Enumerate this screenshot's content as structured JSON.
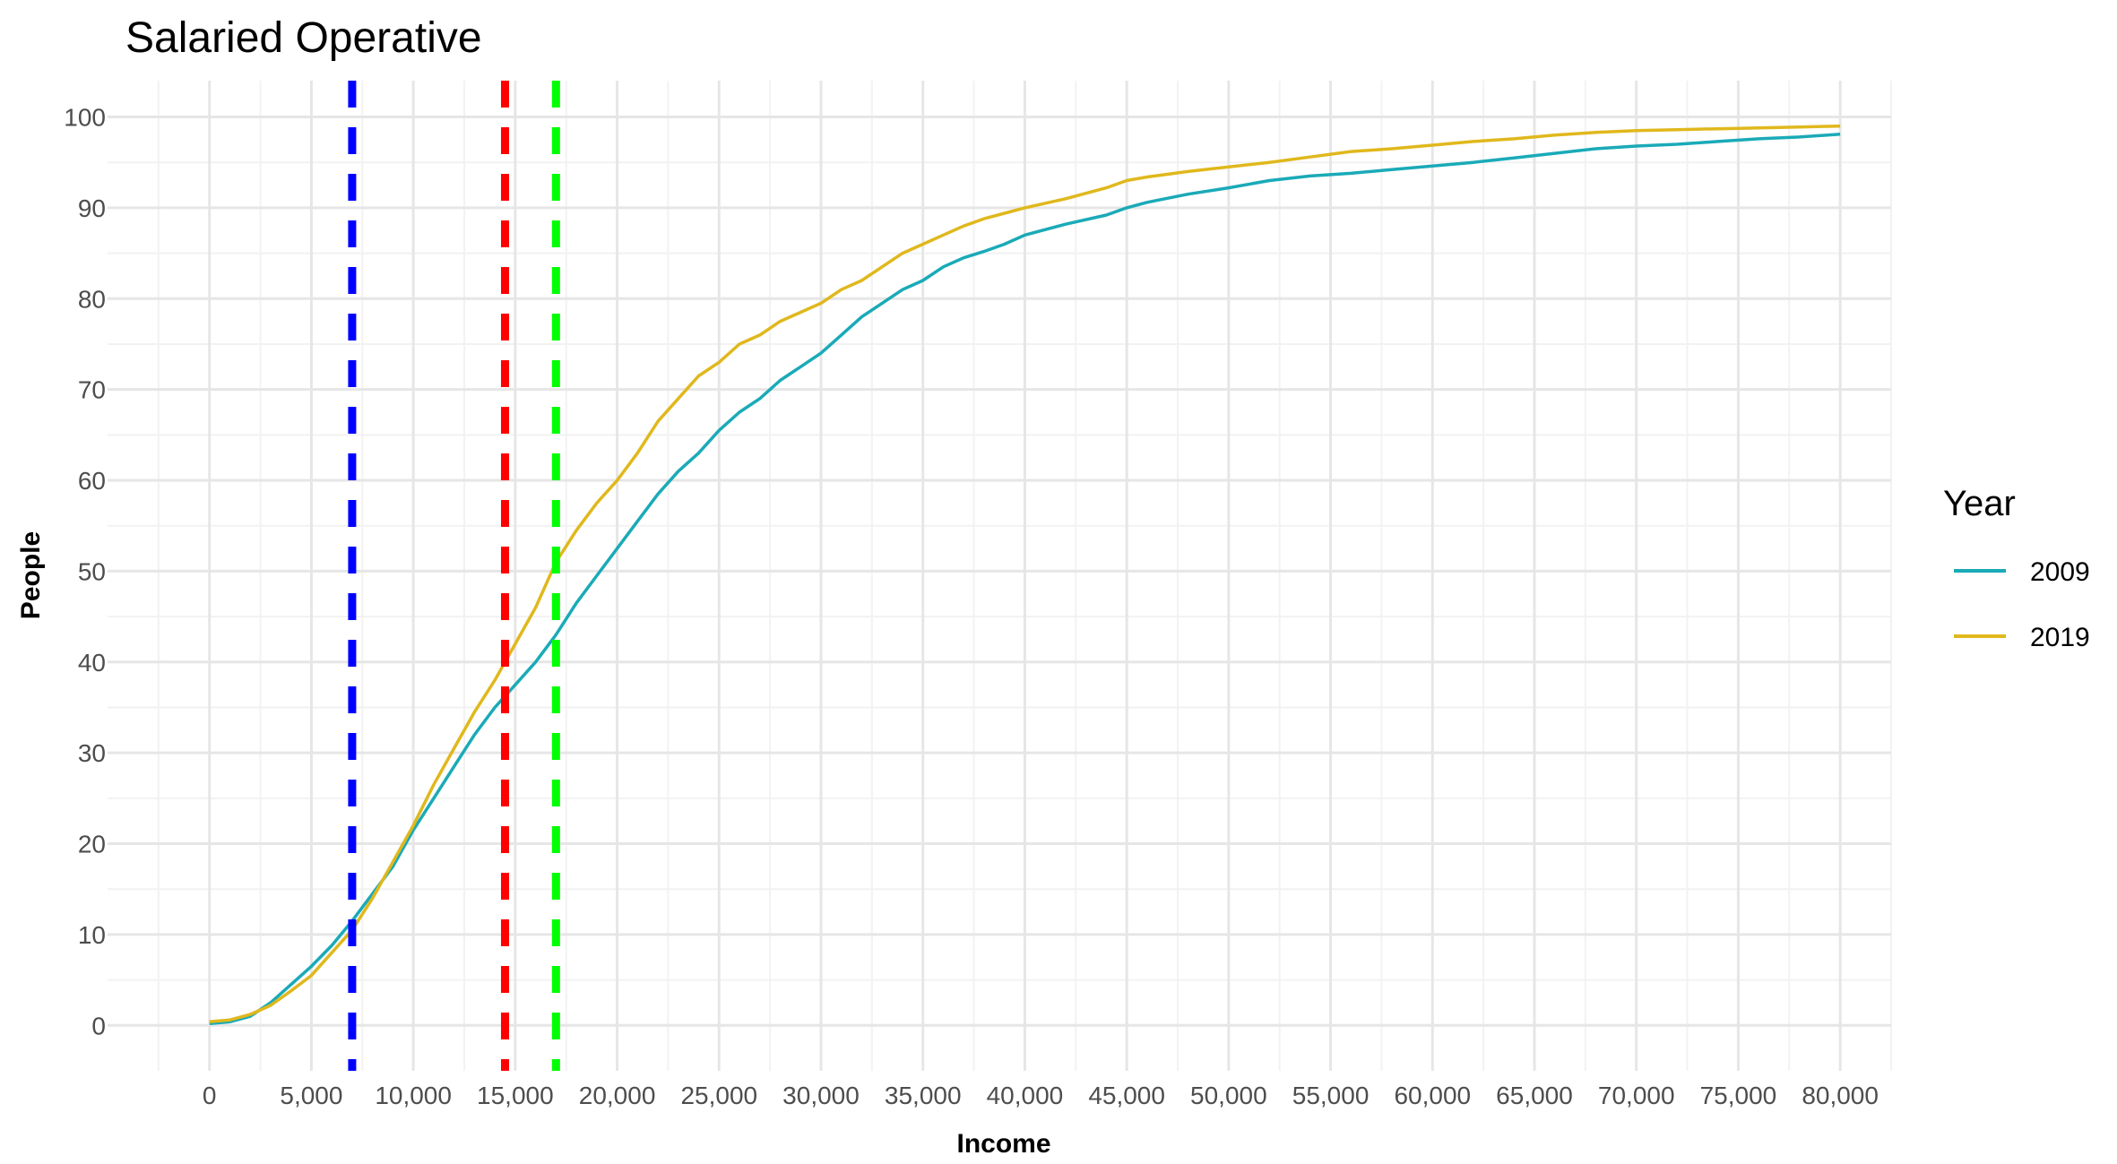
{
  "chart_data": {
    "type": "line",
    "title": "Salaried Operative",
    "xlabel": "Income",
    "ylabel": "People",
    "xlim": [
      -5000,
      82500
    ],
    "ylim": [
      -5,
      104
    ],
    "x_ticks": [
      0,
      5000,
      10000,
      15000,
      20000,
      25000,
      30000,
      35000,
      40000,
      45000,
      50000,
      55000,
      60000,
      65000,
      70000,
      75000,
      80000
    ],
    "x_tick_labels": [
      "0",
      "5,000",
      "10,000",
      "15,000",
      "20,000",
      "25,000",
      "30,000",
      "35,000",
      "40,000",
      "45,000",
      "50,000",
      "55,000",
      "60,000",
      "65,000",
      "70,000",
      "75,000",
      "80,000"
    ],
    "y_ticks": [
      0,
      10,
      20,
      30,
      40,
      50,
      60,
      70,
      80,
      90,
      100
    ],
    "y_tick_labels": [
      "0",
      "10",
      "20",
      "30",
      "40",
      "50",
      "60",
      "70",
      "80",
      "90",
      "100"
    ],
    "grid": true,
    "legend": {
      "title": "Year",
      "placement": "right"
    },
    "series": [
      {
        "name": "2009",
        "color": "#1AAAB8",
        "x": [
          0,
          1000,
          2000,
          3000,
          4000,
          5000,
          6000,
          7000,
          8000,
          9000,
          10000,
          11000,
          12000,
          13000,
          14000,
          15000,
          16000,
          17000,
          18000,
          19000,
          20000,
          21000,
          22000,
          23000,
          24000,
          25000,
          26000,
          27000,
          28000,
          29000,
          30000,
          31000,
          32000,
          33000,
          34000,
          35000,
          36000,
          37000,
          38000,
          39000,
          40000,
          42000,
          44000,
          45000,
          46000,
          48000,
          50000,
          52000,
          54000,
          56000,
          58000,
          60000,
          62000,
          64000,
          66000,
          68000,
          70000,
          72000,
          74000,
          76000,
          78000,
          80000
        ],
        "y": [
          0.2,
          0.4,
          1.0,
          2.5,
          4.5,
          6.5,
          8.8,
          11.5,
          14.5,
          17.5,
          21.5,
          25.0,
          28.5,
          32.0,
          35.0,
          37.5,
          40.0,
          43.0,
          46.5,
          49.5,
          52.5,
          55.5,
          58.5,
          61.0,
          63.0,
          65.5,
          67.5,
          69.0,
          71.0,
          72.5,
          74.0,
          76.0,
          78.0,
          79.5,
          81.0,
          82.0,
          83.5,
          84.5,
          85.2,
          86.0,
          87.0,
          88.2,
          89.2,
          90.0,
          90.6,
          91.5,
          92.2,
          93.0,
          93.5,
          93.8,
          94.2,
          94.6,
          95.0,
          95.5,
          96.0,
          96.5,
          96.8,
          97.0,
          97.3,
          97.6,
          97.8,
          98.1
        ]
      },
      {
        "name": "2019",
        "color": "#E0B81C",
        "x": [
          0,
          1000,
          2000,
          3000,
          4000,
          5000,
          6000,
          7000,
          8000,
          9000,
          10000,
          11000,
          12000,
          13000,
          14000,
          15000,
          16000,
          17000,
          18000,
          19000,
          20000,
          21000,
          22000,
          23000,
          24000,
          25000,
          26000,
          27000,
          28000,
          29000,
          30000,
          31000,
          32000,
          33000,
          34000,
          35000,
          36000,
          37000,
          38000,
          39000,
          40000,
          42000,
          44000,
          45000,
          46000,
          48000,
          50000,
          52000,
          54000,
          56000,
          58000,
          60000,
          62000,
          64000,
          66000,
          68000,
          70000,
          72000,
          74000,
          76000,
          78000,
          80000
        ],
        "y": [
          0.4,
          0.6,
          1.2,
          2.2,
          3.8,
          5.5,
          8.0,
          10.5,
          14.0,
          18.0,
          22.0,
          26.5,
          30.5,
          34.5,
          38.0,
          42.0,
          46.0,
          51.0,
          54.5,
          57.5,
          60.0,
          63.0,
          66.5,
          69.0,
          71.5,
          73.0,
          75.0,
          76.0,
          77.5,
          78.5,
          79.5,
          81.0,
          82.0,
          83.5,
          85.0,
          86.0,
          87.0,
          88.0,
          88.8,
          89.4,
          90.0,
          91.0,
          92.2,
          93.0,
          93.4,
          94.0,
          94.5,
          95.0,
          95.6,
          96.2,
          96.5,
          96.9,
          97.3,
          97.6,
          98.0,
          98.3,
          98.5,
          98.6,
          98.7,
          98.8,
          98.9,
          99.0
        ]
      }
    ],
    "reference_lines": [
      {
        "x": 7000,
        "color": "#0000FF",
        "style": "dashed"
      },
      {
        "x": 14500,
        "color": "#FF0000",
        "style": "dashed"
      },
      {
        "x": 17000,
        "color": "#00FF00",
        "style": "dashed"
      }
    ]
  }
}
